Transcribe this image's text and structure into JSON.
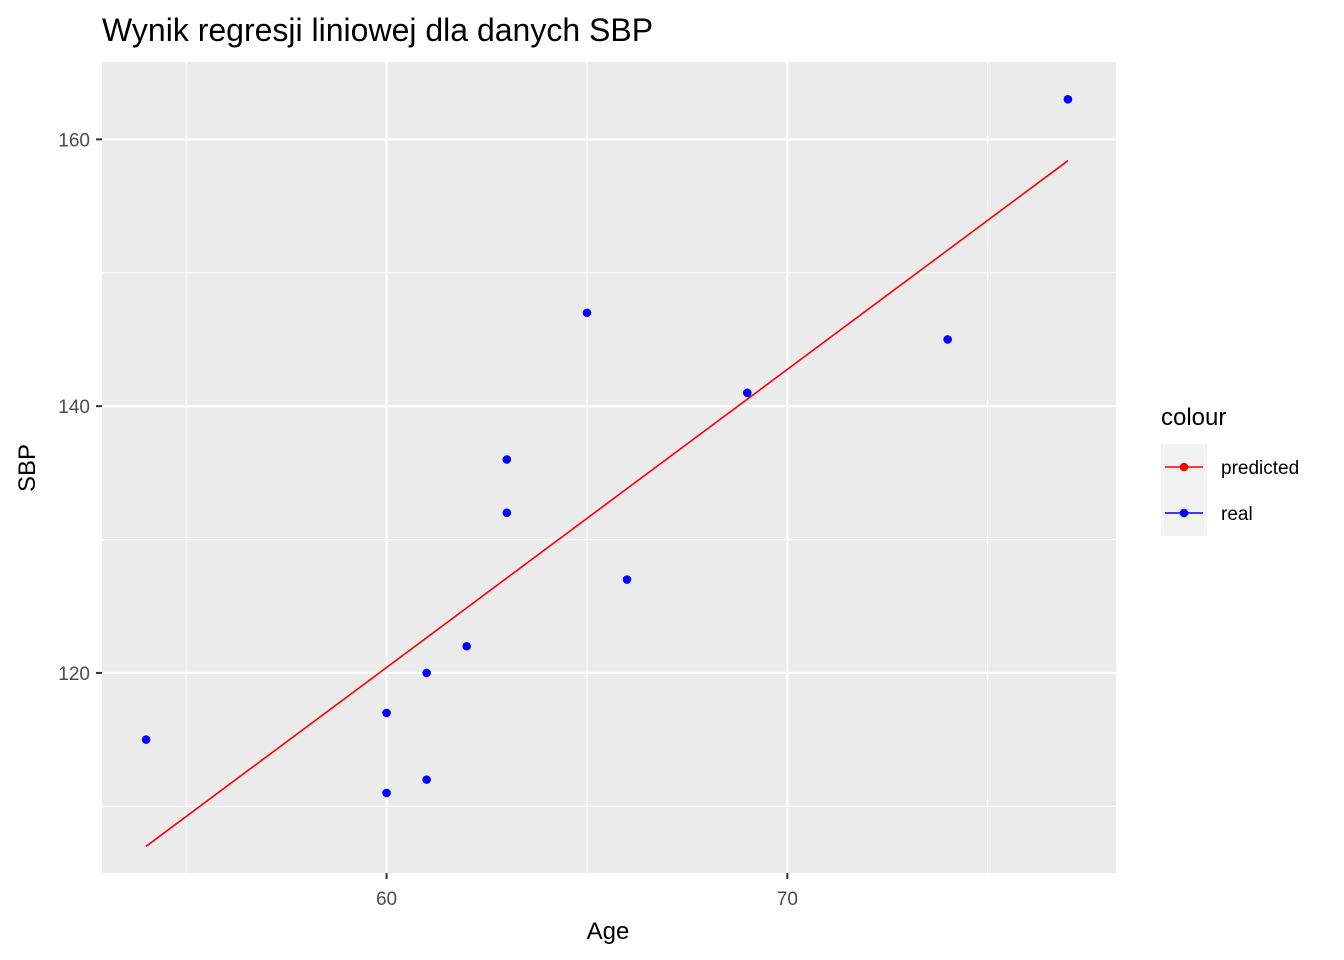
{
  "chart_data": {
    "type": "scatter",
    "title": "Wynik regresji liniowej dla danych SBP",
    "xlabel": "Age",
    "ylabel": "SBP",
    "xlim": [
      52.9,
      78.2
    ],
    "ylim": [
      105.0,
      165.8
    ],
    "x_ticks": [
      60,
      70
    ],
    "x_minor_ticks": [
      55,
      65,
      75
    ],
    "y_ticks": [
      120,
      140,
      160
    ],
    "y_minor_ticks": [
      110,
      130,
      150
    ],
    "grid": true,
    "legend": {
      "title": "colour",
      "placement": "right",
      "entries": [
        {
          "label": "predicted",
          "color": "#ff0000"
        },
        {
          "label": "real",
          "color": "#0000ff"
        }
      ]
    },
    "series": [
      {
        "name": "real",
        "kind": "points",
        "color": "#0000ff",
        "points": [
          {
            "x": 54,
            "y": 115
          },
          {
            "x": 60,
            "y": 117
          },
          {
            "x": 60,
            "y": 111
          },
          {
            "x": 61,
            "y": 120
          },
          {
            "x": 61,
            "y": 112
          },
          {
            "x": 62,
            "y": 122
          },
          {
            "x": 63,
            "y": 136
          },
          {
            "x": 63,
            "y": 132
          },
          {
            "x": 65,
            "y": 147
          },
          {
            "x": 66,
            "y": 127
          },
          {
            "x": 69,
            "y": 141
          },
          {
            "x": 74,
            "y": 145
          },
          {
            "x": 77,
            "y": 163
          }
        ]
      },
      {
        "name": "predicted",
        "kind": "line",
        "color": "#ff0000",
        "points": [
          {
            "x": 54,
            "y": 107.0
          },
          {
            "x": 77,
            "y": 158.4
          }
        ]
      }
    ],
    "panel_background": "#ebebeb",
    "grid_color": "#ffffff"
  }
}
